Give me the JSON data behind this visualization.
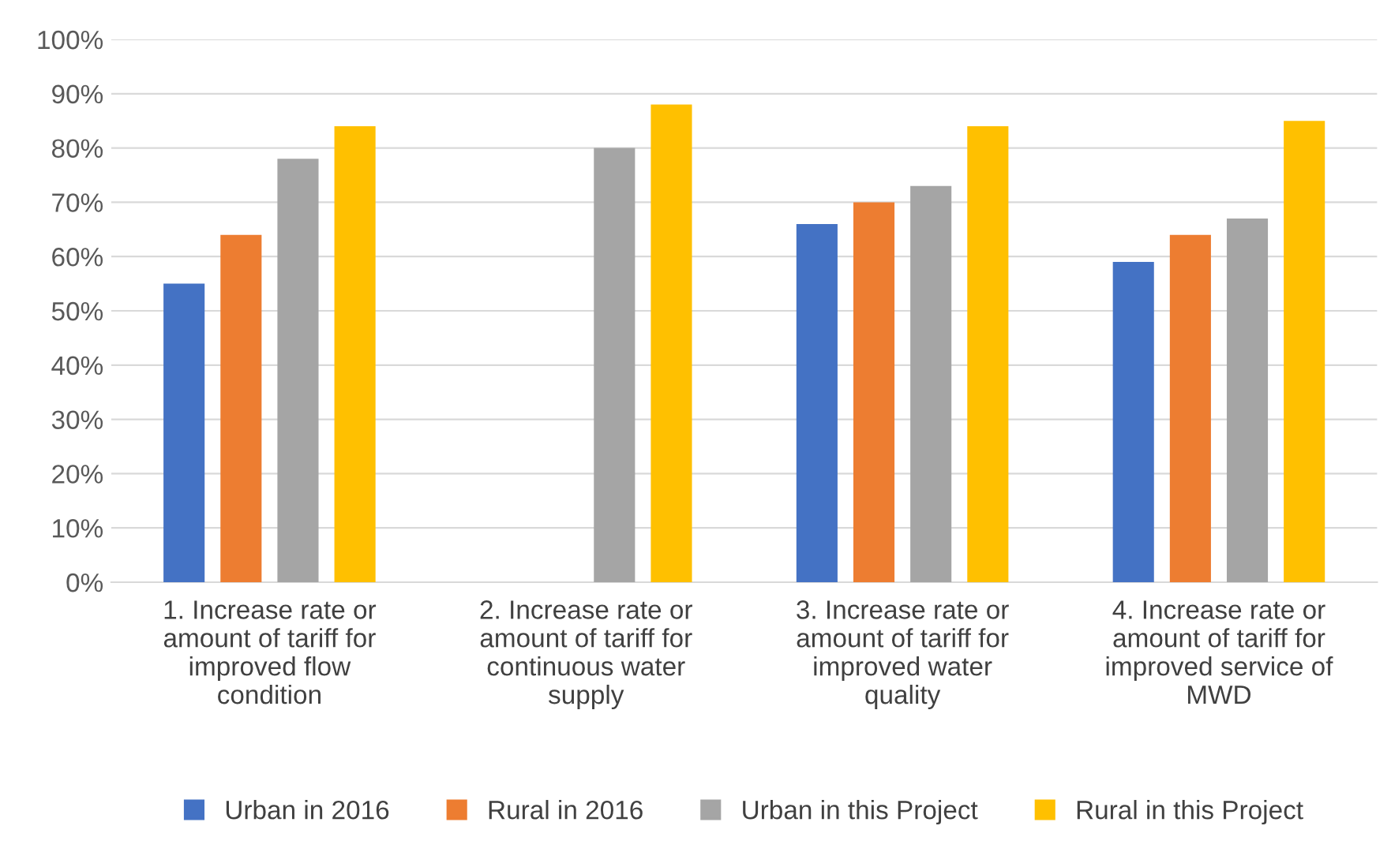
{
  "chart_data": {
    "type": "bar",
    "categories": [
      "1. Increase rate or\namount of tariff for\nimproved flow\ncondition",
      "2. Increase rate or\namount of tariff for\ncontinuous water\nsupply",
      "3. Increase rate or\namount of tariff for\nimproved water\nquality",
      "4. Increase rate or\namount of tariff for\nimproved service of\nMWD"
    ],
    "series": [
      {
        "name": "Urban in 2016",
        "color": "#4472c4",
        "values": [
          55,
          null,
          66,
          59
        ]
      },
      {
        "name": "Rural in 2016",
        "color": "#ed7d31",
        "values": [
          64,
          null,
          70,
          64
        ]
      },
      {
        "name": "Urban in this Project",
        "color": "#a5a5a5",
        "values": [
          78,
          80,
          73,
          67
        ]
      },
      {
        "name": "Rural in this Project",
        "color": "#ffc000",
        "values": [
          84,
          88,
          84,
          85
        ]
      }
    ],
    "ylim": [
      0,
      100
    ],
    "yticks": [
      {
        "value": 0,
        "label": "0%"
      },
      {
        "value": 10,
        "label": "10%"
      },
      {
        "value": 20,
        "label": "20%"
      },
      {
        "value": 30,
        "label": "30%"
      },
      {
        "value": 40,
        "label": "40%"
      },
      {
        "value": 50,
        "label": "50%"
      },
      {
        "value": 60,
        "label": "60%"
      },
      {
        "value": 70,
        "label": "70%"
      },
      {
        "value": 80,
        "label": "80%"
      },
      {
        "value": 90,
        "label": "90%"
      },
      {
        "value": 100,
        "label": "100%"
      }
    ],
    "grid": "y",
    "legend": "bottom"
  }
}
